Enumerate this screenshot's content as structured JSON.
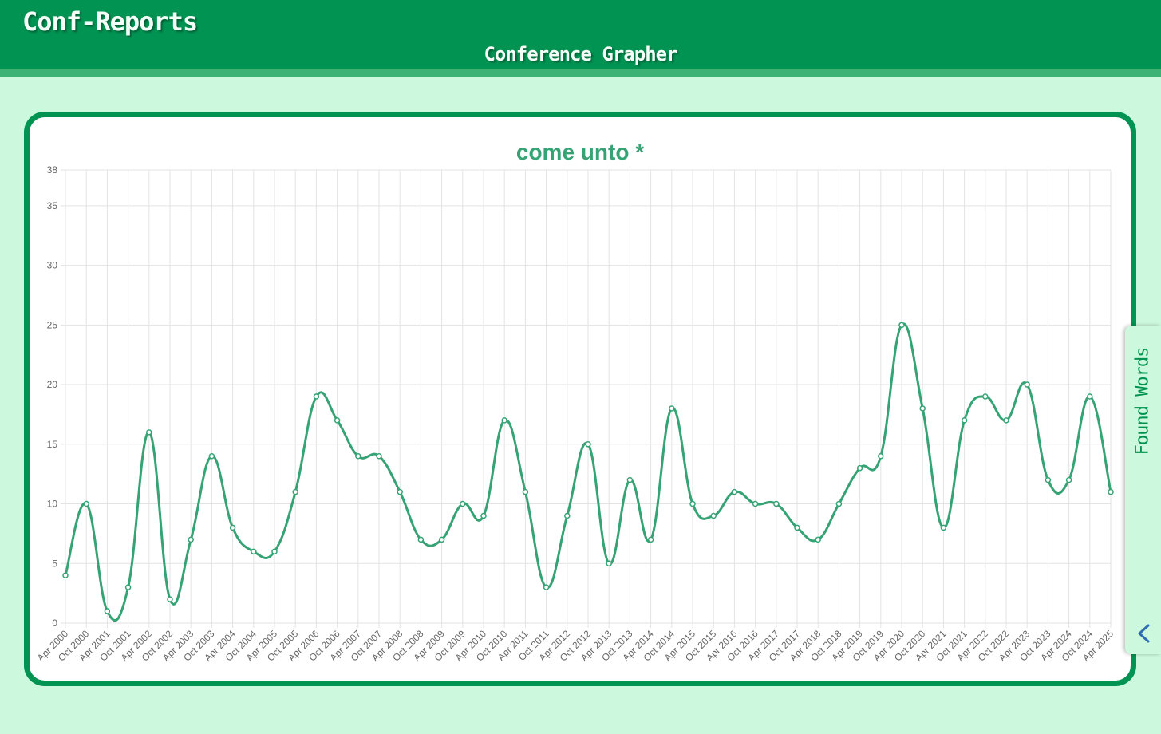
{
  "app": {
    "title": "Conf-Reports",
    "subtitle": "Conference Grapher"
  },
  "side_panel": {
    "label": "Found Words",
    "toggle_icon": "chevron-left-icon"
  },
  "colors": {
    "header": "#009352",
    "header_stripe": "#3cb374",
    "background": "#ccf9dd",
    "series": "#36a374",
    "title": "#36a374"
  },
  "chart_data": {
    "type": "line",
    "title": "come unto *",
    "xlabel": "",
    "ylabel": "",
    "ylim": [
      0,
      38
    ],
    "yticks": [
      0,
      5,
      10,
      15,
      20,
      25,
      30,
      35,
      38
    ],
    "grid": true,
    "x": [
      "Apr 2000",
      "Oct 2000",
      "Apr 2001",
      "Oct 2001",
      "Apr 2002",
      "Oct 2002",
      "Apr 2003",
      "Oct 2003",
      "Apr 2004",
      "Oct 2004",
      "Apr 2005",
      "Oct 2005",
      "Apr 2006",
      "Oct 2006",
      "Apr 2007",
      "Oct 2007",
      "Apr 2008",
      "Oct 2008",
      "Apr 2009",
      "Oct 2009",
      "Apr 2010",
      "Oct 2010",
      "Apr 2011",
      "Oct 2011",
      "Apr 2012",
      "Oct 2012",
      "Apr 2013",
      "Oct 2013",
      "Apr 2014",
      "Oct 2014",
      "Apr 2015",
      "Oct 2015",
      "Apr 2016",
      "Oct 2016",
      "Apr 2017",
      "Oct 2017",
      "Apr 2018",
      "Oct 2018",
      "Apr 2019",
      "Oct 2019",
      "Apr 2020",
      "Oct 2020",
      "Apr 2021",
      "Oct 2021",
      "Apr 2022",
      "Oct 2022",
      "Apr 2023",
      "Oct 2023",
      "Apr 2024",
      "Oct 2024",
      "Apr 2025"
    ],
    "series": [
      {
        "values": [
          4,
          10,
          1,
          3,
          16,
          2,
          7,
          14,
          8,
          6,
          6,
          11,
          19,
          17,
          14,
          14,
          11,
          7,
          7,
          10,
          9,
          17,
          11,
          3,
          9,
          15,
          5,
          12,
          7,
          18,
          10,
          9,
          11,
          10,
          10,
          8,
          7,
          10,
          13,
          14,
          25,
          18,
          8,
          17,
          19,
          17,
          20,
          12,
          12,
          19,
          11
        ]
      }
    ]
  }
}
